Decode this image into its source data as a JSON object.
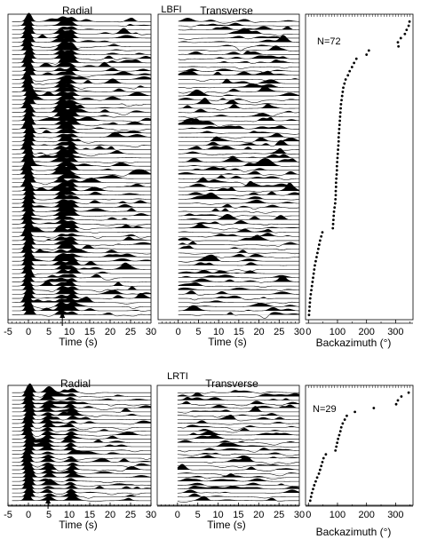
{
  "figure": {
    "colors": {
      "ink": "#000000",
      "background": "#ffffff"
    }
  },
  "chart_data": [
    {
      "type": "waveform",
      "station": "LBFI",
      "panel": "Radial",
      "xlabel": "Time (s)",
      "xlim": [
        -5,
        30
      ],
      "xticks": [
        -5,
        0,
        5,
        10,
        15,
        20,
        25,
        30
      ],
      "trace_count": 72,
      "marker": {
        "symbol": "arrow",
        "time": 8.3
      }
    },
    {
      "type": "waveform",
      "station": "LBFI",
      "panel": "Transverse",
      "xlabel": "Time (s)",
      "xlim": [
        -5,
        30
      ],
      "xticks": [
        0,
        5,
        10,
        15,
        20,
        25,
        30
      ],
      "trace_count": 72
    },
    {
      "type": "scatter",
      "station": "LBFI",
      "annotation": "N=72",
      "xlabel": "Backazimuth (°)",
      "xlim": [
        -10,
        360
      ],
      "xticks": [
        0,
        100,
        200,
        300
      ],
      "points": [
        {
          "x": 348,
          "y": 1
        },
        {
          "x": 345,
          "y": 2
        },
        {
          "x": 338,
          "y": 3
        },
        {
          "x": 332,
          "y": 4
        },
        {
          "x": 318,
          "y": 5
        },
        {
          "x": 308,
          "y": 6
        },
        {
          "x": 310,
          "y": 7
        },
        {
          "x": 208,
          "y": 8
        },
        {
          "x": 200,
          "y": 9
        },
        {
          "x": 165,
          "y": 10
        },
        {
          "x": 157,
          "y": 11
        },
        {
          "x": 150,
          "y": 12
        },
        {
          "x": 142,
          "y": 13
        },
        {
          "x": 136,
          "y": 14
        },
        {
          "x": 128,
          "y": 15
        },
        {
          "x": 124,
          "y": 16
        },
        {
          "x": 120,
          "y": 17
        },
        {
          "x": 118,
          "y": 18
        },
        {
          "x": 116,
          "y": 19
        },
        {
          "x": 114,
          "y": 20
        },
        {
          "x": 112,
          "y": 21
        },
        {
          "x": 111,
          "y": 22
        },
        {
          "x": 110,
          "y": 23
        },
        {
          "x": 109,
          "y": 24
        },
        {
          "x": 108,
          "y": 25
        },
        {
          "x": 107,
          "y": 26
        },
        {
          "x": 106,
          "y": 27
        },
        {
          "x": 105,
          "y": 28
        },
        {
          "x": 104,
          "y": 29
        },
        {
          "x": 104,
          "y": 30
        },
        {
          "x": 103,
          "y": 31
        },
        {
          "x": 102,
          "y": 32
        },
        {
          "x": 101,
          "y": 33
        },
        {
          "x": 100,
          "y": 34
        },
        {
          "x": 99,
          "y": 35
        },
        {
          "x": 98,
          "y": 36
        },
        {
          "x": 98,
          "y": 37
        },
        {
          "x": 97,
          "y": 38
        },
        {
          "x": 96,
          "y": 39
        },
        {
          "x": 95,
          "y": 40
        },
        {
          "x": 95,
          "y": 41
        },
        {
          "x": 94,
          "y": 42
        },
        {
          "x": 94,
          "y": 43
        },
        {
          "x": 93,
          "y": 44
        },
        {
          "x": 92,
          "y": 45
        },
        {
          "x": 90,
          "y": 46
        },
        {
          "x": 88,
          "y": 47
        },
        {
          "x": 87,
          "y": 48
        },
        {
          "x": 86,
          "y": 49
        },
        {
          "x": 85,
          "y": 50
        },
        {
          "x": 84,
          "y": 51
        },
        {
          "x": 48,
          "y": 52
        },
        {
          "x": 44,
          "y": 53
        },
        {
          "x": 40,
          "y": 54
        },
        {
          "x": 37,
          "y": 55
        },
        {
          "x": 34,
          "y": 56
        },
        {
          "x": 31,
          "y": 57
        },
        {
          "x": 28,
          "y": 58
        },
        {
          "x": 25,
          "y": 59
        },
        {
          "x": 22,
          "y": 60
        },
        {
          "x": 20,
          "y": 61
        },
        {
          "x": 18,
          "y": 62
        },
        {
          "x": 16,
          "y": 63
        },
        {
          "x": 14,
          "y": 64
        },
        {
          "x": 12,
          "y": 65
        },
        {
          "x": 10,
          "y": 66
        },
        {
          "x": 8,
          "y": 67
        },
        {
          "x": 6,
          "y": 68
        },
        {
          "x": 5,
          "y": 69
        },
        {
          "x": 4,
          "y": 70
        },
        {
          "x": 3,
          "y": 71
        },
        {
          "x": 2,
          "y": 72
        }
      ]
    },
    {
      "type": "waveform",
      "station": "LRTI",
      "panel": "Radial",
      "xlabel": "Time (s)",
      "xlim": [
        -5,
        30
      ],
      "xticks": [
        -5,
        0,
        5,
        10,
        15,
        20,
        25,
        30
      ],
      "trace_count": 29,
      "marker": {
        "symbol": "arrow",
        "time": 4.8
      }
    },
    {
      "type": "waveform",
      "station": "LRTI",
      "panel": "Transverse",
      "xlabel": "Time (s)",
      "xlim": [
        -5,
        30
      ],
      "xticks": [
        0,
        5,
        10,
        15,
        20,
        25,
        30
      ],
      "trace_count": 29
    },
    {
      "type": "scatter",
      "station": "LRTI",
      "annotation": "N=29",
      "xlabel": "Backazimuth (°)",
      "xlim": [
        -10,
        360
      ],
      "xticks": [
        0,
        100,
        200,
        300
      ],
      "points": [
        {
          "x": 345,
          "y": 1
        },
        {
          "x": 320,
          "y": 2
        },
        {
          "x": 308,
          "y": 3
        },
        {
          "x": 302,
          "y": 4
        },
        {
          "x": 225,
          "y": 5
        },
        {
          "x": 160,
          "y": 6
        },
        {
          "x": 132,
          "y": 7
        },
        {
          "x": 125,
          "y": 8
        },
        {
          "x": 118,
          "y": 9
        },
        {
          "x": 113,
          "y": 10
        },
        {
          "x": 110,
          "y": 11
        },
        {
          "x": 106,
          "y": 12
        },
        {
          "x": 102,
          "y": 13
        },
        {
          "x": 99,
          "y": 14
        },
        {
          "x": 96,
          "y": 15
        },
        {
          "x": 93,
          "y": 16
        },
        {
          "x": 60,
          "y": 17
        },
        {
          "x": 52,
          "y": 18
        },
        {
          "x": 48,
          "y": 19
        },
        {
          "x": 44,
          "y": 20
        },
        {
          "x": 40,
          "y": 21
        },
        {
          "x": 36,
          "y": 22
        },
        {
          "x": 30,
          "y": 23
        },
        {
          "x": 25,
          "y": 24
        },
        {
          "x": 20,
          "y": 25
        },
        {
          "x": 16,
          "y": 26
        },
        {
          "x": 12,
          "y": 27
        },
        {
          "x": 9,
          "y": 28
        },
        {
          "x": 6,
          "y": 29
        }
      ]
    }
  ]
}
